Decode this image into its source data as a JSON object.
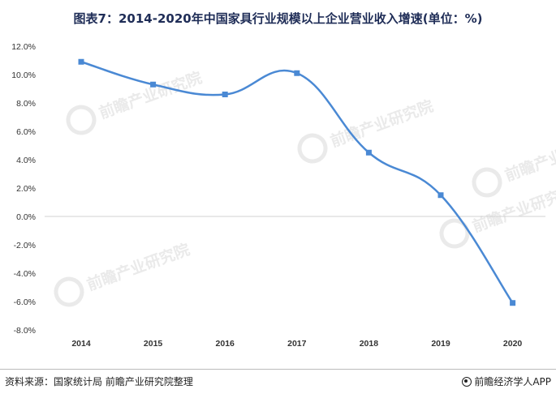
{
  "title": "图表7：2014-2020年中国家具行业规模以上企业营业收入增速(单位：%)",
  "footer": {
    "source": "资料来源：国家统计局 前瞻产业研究院整理",
    "brand": "前瞻经济学人APP",
    "brand_icon": "target-icon"
  },
  "watermark": {
    "text": "前瞻产业研究院",
    "color": "#d9d9d9"
  },
  "chart_data": {
    "type": "line",
    "title": "图表7：2014-2020年中国家具行业规模以上企业营业收入增速(单位：%)",
    "x": [
      "2014",
      "2015",
      "2016",
      "2017",
      "2018",
      "2019",
      "2020"
    ],
    "series": [
      {
        "values": [
          10.9,
          9.3,
          8.6,
          10.1,
          4.5,
          1.5,
          -6.1
        ],
        "color": "#4a89d4",
        "marker": "square",
        "smooth": true
      }
    ],
    "ylim": [
      -8,
      12
    ],
    "yticks": [
      12,
      10,
      8,
      6,
      4,
      2,
      0,
      -2,
      -4,
      -6,
      -8
    ],
    "ytick_labels": [
      "12.0%",
      "10.0%",
      "8.0%",
      "6.0%",
      "4.0%",
      "2.0%",
      "0.0%",
      "-2.0%",
      "-4.0%",
      "-6.0%",
      "-8.0%"
    ],
    "xlabel": "",
    "ylabel": "",
    "zero_line": true,
    "grid": false,
    "legend": "none"
  }
}
